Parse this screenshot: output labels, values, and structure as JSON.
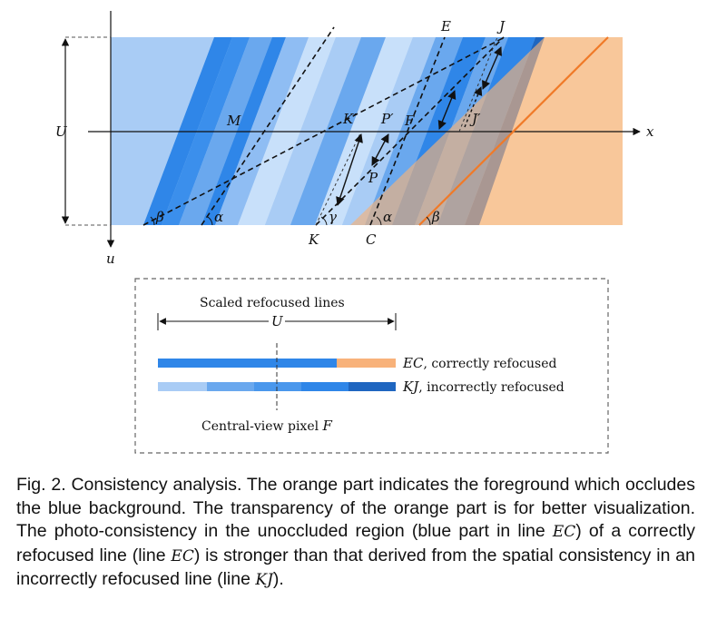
{
  "diagram": {
    "labels": {
      "E": "E",
      "J": "J",
      "M": "M",
      "K_prime": "K′",
      "P_prime": "P′",
      "F": "F",
      "J_prime": "J′",
      "P": "P",
      "K": "K",
      "C": "C",
      "x": "x",
      "u": "u",
      "U": "U",
      "alpha": "α",
      "beta": "β",
      "gamma": "γ"
    },
    "colors": {
      "blue_light": "#a9ccf5",
      "blue_mid": "#6aa8ee",
      "blue_main": "#2f86e8",
      "blue_pale": "#c8e0fa",
      "orange": "#f5b27a",
      "orange_line": "#f07a28"
    }
  },
  "legend": {
    "title": "Scaled refocused lines",
    "span_label": "U",
    "line_ec_label": "EC",
    "line_ec_text": ", correctly refocused",
    "line_kj_label": "KJ",
    "line_kj_text": ", incorrectly refocused",
    "pixel_label": "Central-view pixel ",
    "pixel_var": "F"
  },
  "caption": {
    "p1": "Fig. 2. Consistency analysis. The orange part indicates the foreground which occludes the blue background. The transparency of the orange part is for better visualization. The photo-consistency in the unoccluded region (blue part in line ",
    "v1": "EC",
    "p2": ") of a correctly refocused line (line ",
    "v2": "EC",
    "p3": ") is stronger than that derived from the spatial consistency in an incorrectly refocused line (line ",
    "v3": "KJ",
    "p4": ")."
  }
}
